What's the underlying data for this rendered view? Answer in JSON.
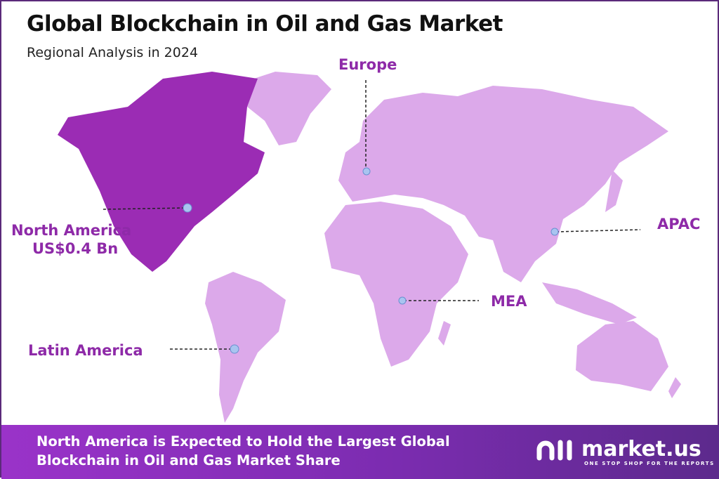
{
  "header": {
    "title": "Global Blockchain in Oil and Gas Market",
    "subtitle": "Regional Analysis in 2024"
  },
  "colors": {
    "highlight_region": "#9b2cb4",
    "other_regions": "#dca9ea",
    "label": "#8e2aa8",
    "marker": "#a9c4f0",
    "border": "#5b2a7a"
  },
  "regions": [
    {
      "name": "North America",
      "value": "US$0.4 Bn",
      "highlighted": true
    },
    {
      "name": "Europe",
      "highlighted": false
    },
    {
      "name": "APAC",
      "highlighted": false
    },
    {
      "name": "MEA",
      "highlighted": false
    },
    {
      "name": "Latin America",
      "highlighted": false
    }
  ],
  "banner": {
    "text": "North America is Expected to Hold the Largest Global Blockchain in Oil and Gas Market Share"
  },
  "logo": {
    "name": "market.us",
    "tagline": "ONE STOP SHOP FOR THE REPORTS"
  }
}
